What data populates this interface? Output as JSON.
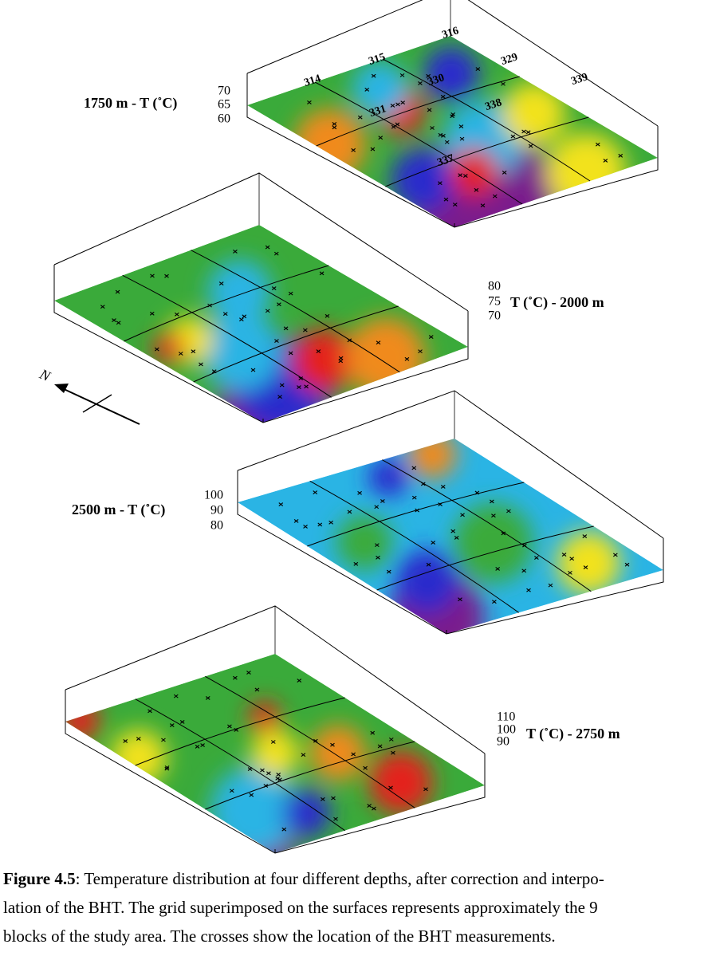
{
  "panels": [
    {
      "label": "1750 m   -   T (˚C)",
      "ticks": [
        70,
        65,
        60
      ],
      "blocks": [
        "314",
        "315",
        "316",
        "329",
        "330",
        "331",
        "337",
        "338",
        "339"
      ]
    },
    {
      "label": "T (˚C)   -   2000 m",
      "ticks": [
        80,
        75,
        70
      ]
    },
    {
      "label": "2500 m   -   T (˚C)",
      "ticks": [
        100,
        90,
        80
      ]
    },
    {
      "label": "T (˚C)   -   2750 m",
      "ticks": [
        110,
        100,
        90
      ]
    }
  ],
  "north": "N",
  "caption": {
    "bold": "Figure 4.5",
    "lines": [
      ": Temperature distribution at four different depths, after correction and interpo-",
      "lation of the BHT. The grid superimposed on the surfaces represents approximately the 9",
      "blocks of the study area. The crosses show the location of the BHT measurements."
    ]
  }
}
